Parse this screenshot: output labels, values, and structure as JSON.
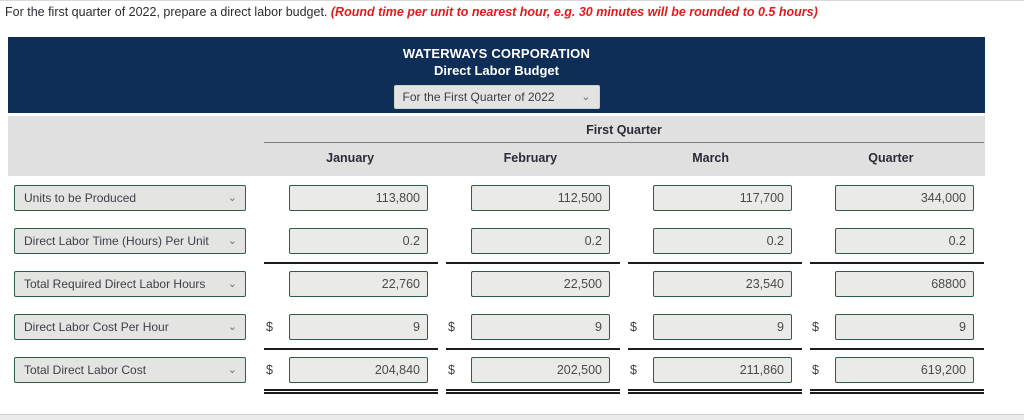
{
  "instruction": {
    "text": "For the first quarter of 2022, prepare a direct labor budget. ",
    "note": "(Round time per unit to nearest hour, e.g. 30 minutes will be rounded to 0.5 hours)"
  },
  "banner": {
    "company": "WATERWAYS CORPORATION",
    "title": "Direct Labor Budget",
    "period_selected": "For the First Quarter of 2022",
    "chevron_icon": "⌄"
  },
  "table": {
    "group_header": "First Quarter",
    "columns": [
      "January",
      "February",
      "March",
      "Quarter"
    ],
    "rows": [
      {
        "label": "Units to be Produced",
        "dollar": false,
        "rule_above": false,
        "double_rule_below": false,
        "values": [
          "113,800",
          "112,500",
          "117,700",
          "344,000"
        ]
      },
      {
        "label": "Direct Labor Time (Hours) Per Unit",
        "dollar": false,
        "rule_above": false,
        "double_rule_below": false,
        "values": [
          "0.2",
          "0.2",
          "0.2",
          "0.2"
        ]
      },
      {
        "label": "Total Required Direct Labor Hours",
        "dollar": false,
        "rule_above": true,
        "double_rule_below": false,
        "values": [
          "22,760",
          "22,500",
          "23,540",
          "68800"
        ]
      },
      {
        "label": "Direct Labor Cost Per Hour",
        "dollar": true,
        "rule_above": false,
        "double_rule_below": false,
        "values": [
          "9",
          "9",
          "9",
          "9"
        ]
      },
      {
        "label": "Total Direct Labor Cost",
        "dollar": true,
        "rule_above": true,
        "double_rule_below": true,
        "values": [
          "204,840",
          "202,500",
          "211,860",
          "619,200"
        ]
      }
    ],
    "dollar_symbol": "$",
    "chevron_icon": "⌄"
  },
  "colors": {
    "banner_navy": "#0f2e57",
    "header_band_gray": "#e0e0e0",
    "input_border_green": "#2e5f44",
    "input_bg": "#eaeae8",
    "note_red": "#e01b1b",
    "rule_black": "#1c1c1c"
  }
}
